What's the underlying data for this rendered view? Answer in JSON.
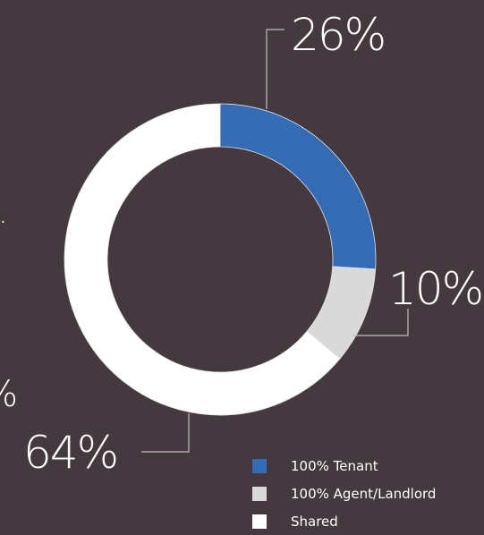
{
  "chart_data": {
    "type": "pie",
    "variant": "donut",
    "slices": [
      {
        "label": "100% Tenant",
        "value": 26,
        "value_label": "26%",
        "color": "#336bb5"
      },
      {
        "label": "100% Agent/Landlord",
        "value": 10,
        "value_label": "10%",
        "color": "#d9d9d9"
      },
      {
        "label": "Shared",
        "value": 64,
        "value_label": "64%",
        "color": "#ffffff"
      }
    ],
    "legend_position": "bottom-right"
  },
  "edge_glyphs": {
    "left_mid": ".",
    "left_low": "%"
  },
  "colors": {
    "background": "#44393e",
    "leader": "#bfbfbf"
  }
}
